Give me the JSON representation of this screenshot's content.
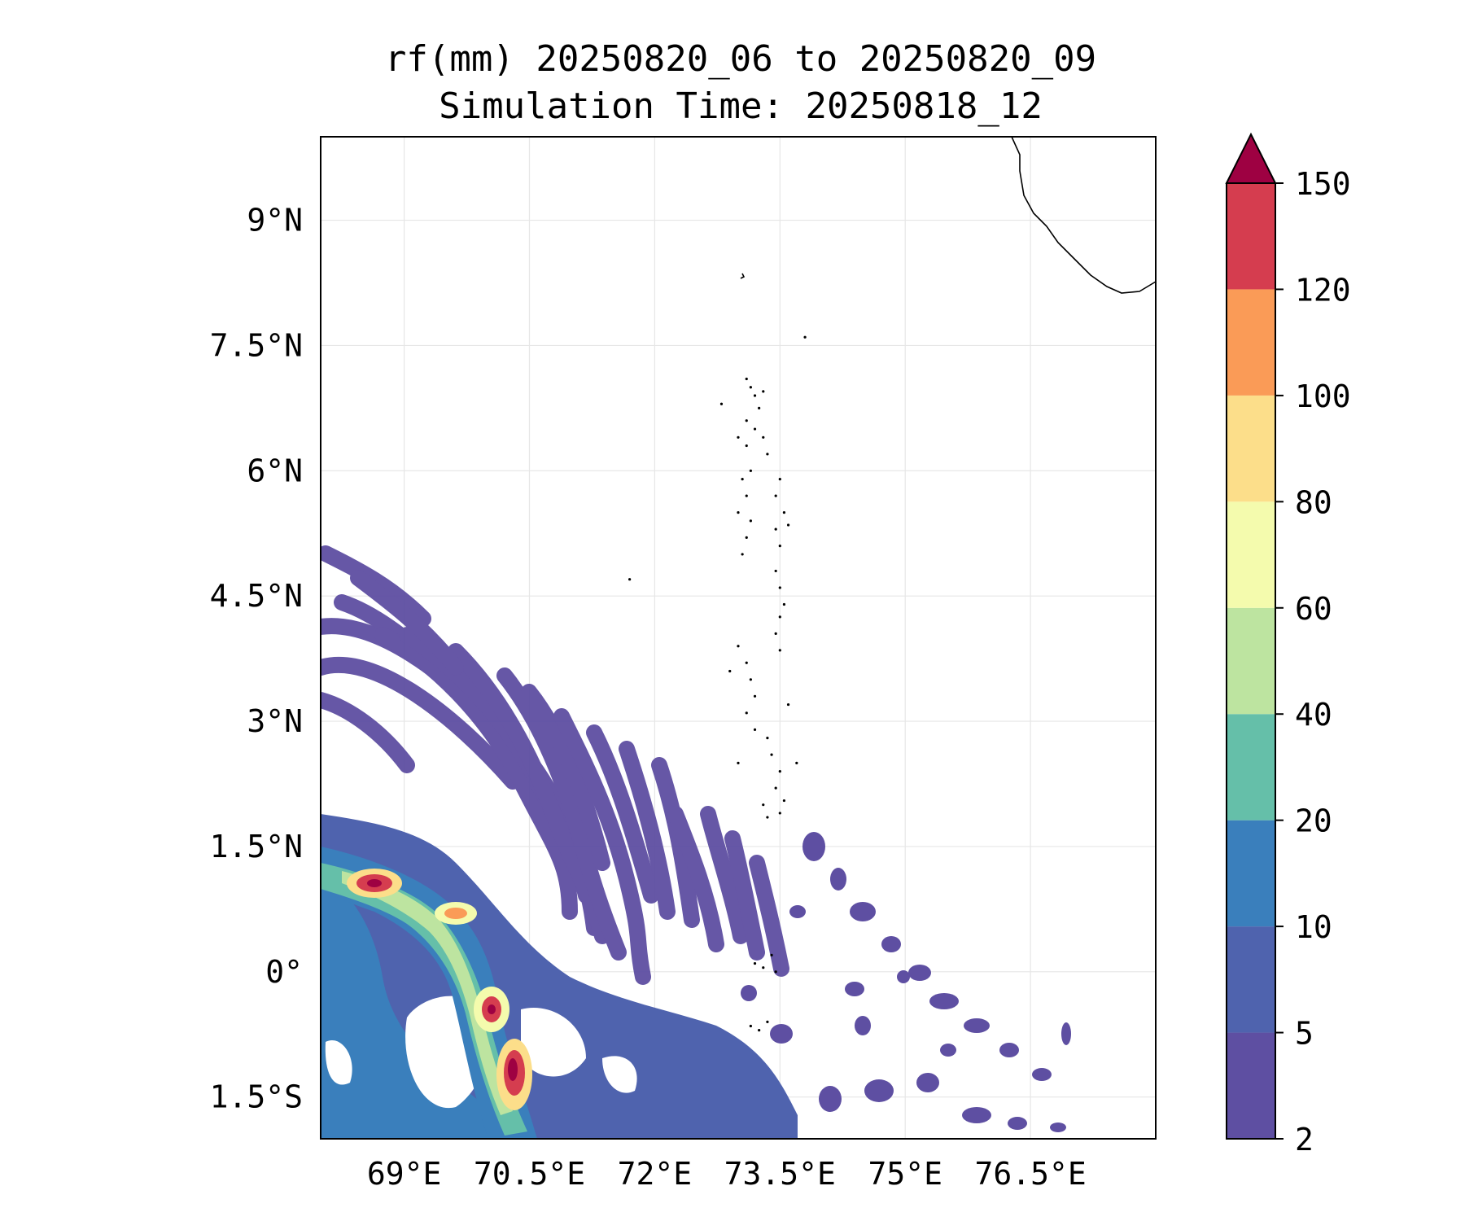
{
  "title": {
    "line1": "rf(mm) 20250820_06 to 20250820_09",
    "line2": "Simulation Time: 20250818_12"
  },
  "map": {
    "lon_range": [
      68.0,
      78.0
    ],
    "lat_range": [
      -2.0,
      10.0
    ],
    "lon_ticks": [
      69,
      70.5,
      72,
      73.5,
      75,
      76.5
    ],
    "lon_tick_labels": [
      "69°E",
      "70.5°E",
      "72°E",
      "73.5°E",
      "75°E",
      "76.5°E"
    ],
    "lat_ticks": [
      9,
      7.5,
      6,
      4.5,
      3,
      1.5,
      0,
      -1.5
    ],
    "lat_tick_labels": [
      "9°N",
      "7.5°N",
      "6°N",
      "4.5°N",
      "3°N",
      "1.5°N",
      "0°",
      "1.5°S"
    ],
    "gridlines": true,
    "coastline_color": "#000000"
  },
  "colorbar": {
    "levels": [
      2,
      5,
      10,
      20,
      40,
      60,
      80,
      100,
      120,
      150
    ],
    "level_labels": [
      "2",
      "5",
      "10",
      "20",
      "40",
      "60",
      "80",
      "100",
      "120",
      "150"
    ],
    "colors": [
      "#5e4fa2",
      "#4f63ae",
      "#3a7fbc",
      "#65bfa9",
      "#bde4a0",
      "#f4fbad",
      "#fcde8a",
      "#fa9b57",
      "#d53d4f"
    ],
    "extend_color": "#9e0142",
    "extend": "max"
  },
  "rain_features": [
    {
      "lon": 68.9,
      "lat": 1.1,
      "max_level": 150
    },
    {
      "lon": 69.6,
      "lat": 0.75,
      "max_level": 100
    },
    {
      "lon": 70.1,
      "lat": -0.4,
      "max_level": 150
    },
    {
      "lon": 70.4,
      "lat": -1.1,
      "max_level": 150
    },
    {
      "lon": 70.5,
      "lat": -1.35,
      "max_level": 150
    }
  ]
}
